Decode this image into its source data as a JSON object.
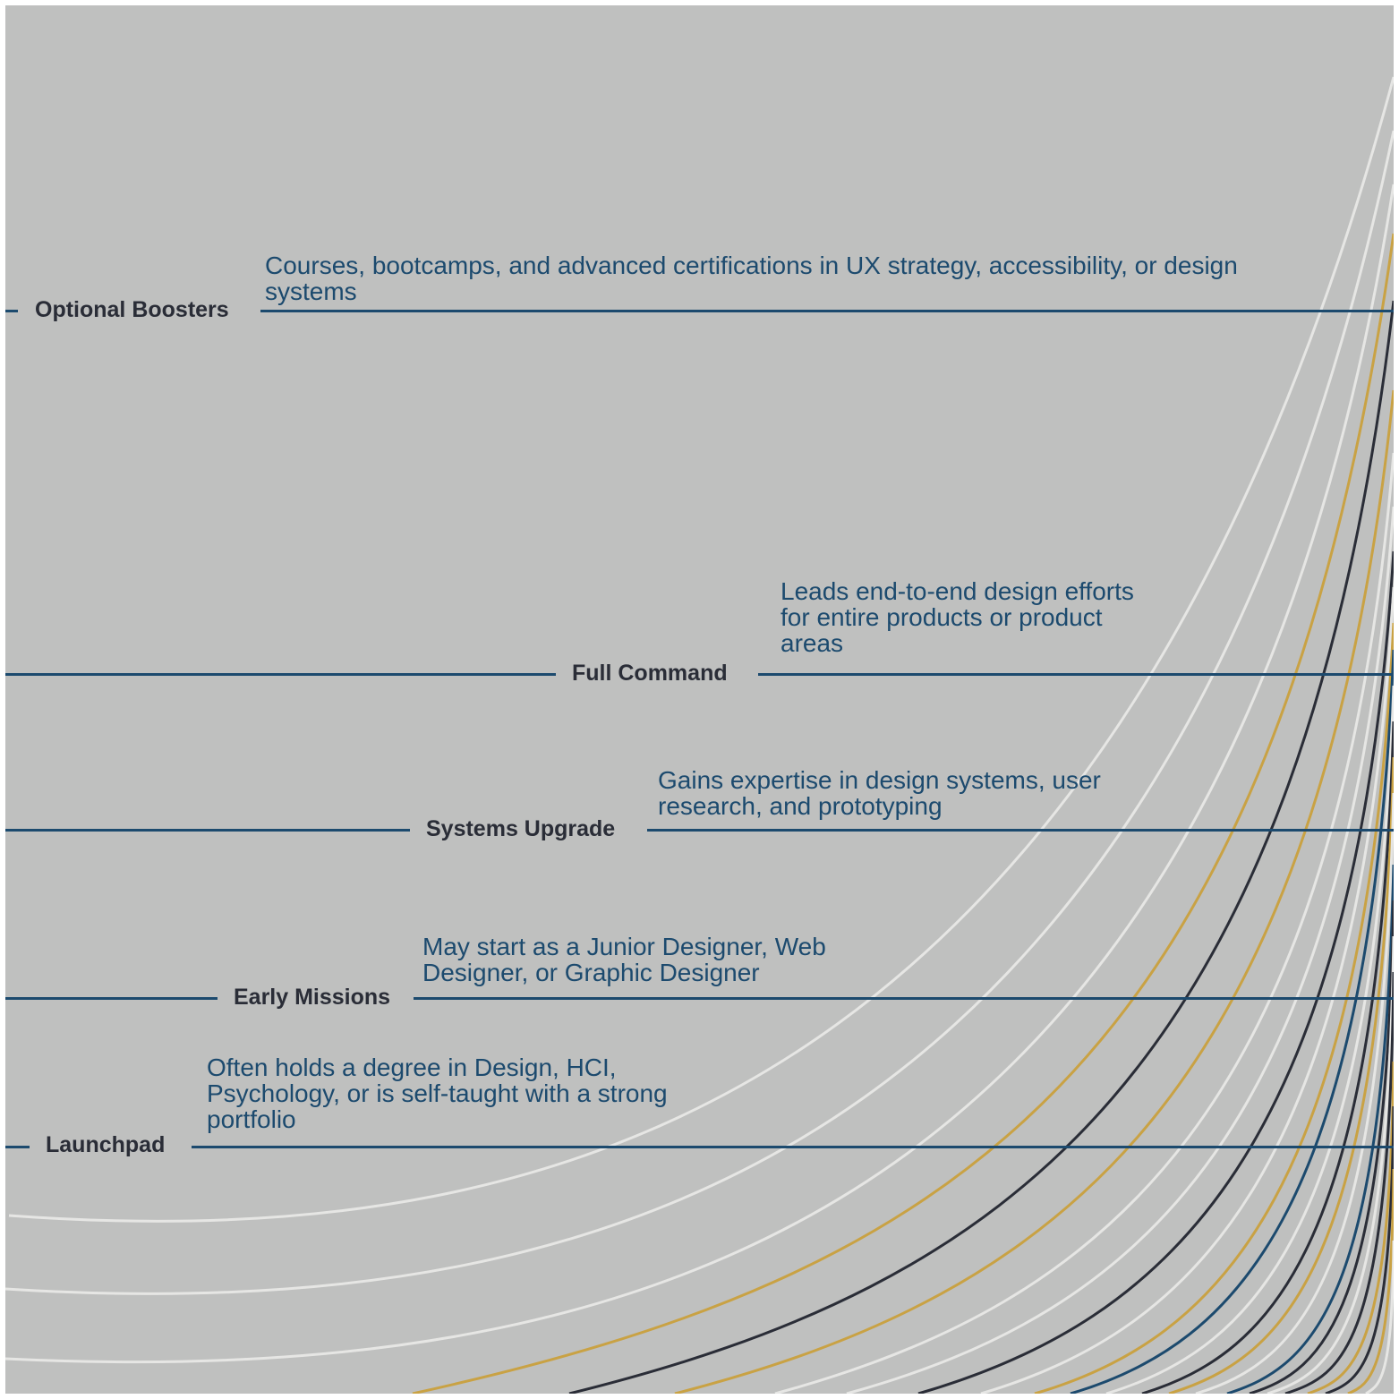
{
  "palette": {
    "background": "#bfc0bf",
    "rule": "#1c4a6e",
    "stage_text": "#2a2d37",
    "desc_text": "#1c4a6e",
    "curve_white": "#e6e6e4",
    "curve_gold": "#c9a244",
    "curve_dark": "#2a2d37",
    "curve_blue": "#1c4a6e"
  },
  "stages": [
    {
      "label": "Optional Boosters",
      "description": "Courses, bootcamps, and advanced certifications in UX strategy, accessibility, or design systems"
    },
    {
      "label": "Full Command",
      "description": "Leads end-to-end design efforts for entire products or product areas"
    },
    {
      "label": "Systems Upgrade",
      "description": "Gains expertise in design systems, user research, and prototyping"
    },
    {
      "label": "Early Missions",
      "description": "May start as a Junior Designer, Web Designer, or Graphic Designer"
    },
    {
      "label": "Launchpad",
      "description": "Often holds a degree in Design, HCI, Psychology, or is self-taught with a strong portfolio"
    }
  ]
}
